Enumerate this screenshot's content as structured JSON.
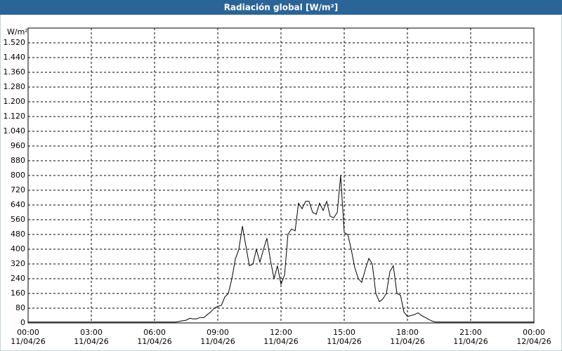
{
  "chart_data": {
    "type": "line",
    "title": "Radiación global [W/m²]",
    "y_label": "W/m²",
    "x": [
      0,
      1,
      2,
      3,
      4,
      5,
      6,
      7,
      7.17,
      7.33,
      7.5,
      7.67,
      7.83,
      8,
      8.17,
      8.33,
      8.5,
      8.67,
      8.83,
      9,
      9.17,
      9.33,
      9.5,
      9.67,
      9.83,
      10,
      10.17,
      10.33,
      10.5,
      10.67,
      10.83,
      11,
      11.17,
      11.33,
      11.5,
      11.67,
      11.83,
      12,
      12.17,
      12.33,
      12.5,
      12.67,
      12.83,
      13,
      13.17,
      13.33,
      13.5,
      13.67,
      13.83,
      14,
      14.17,
      14.33,
      14.5,
      14.67,
      14.83,
      15,
      15.17,
      15.33,
      15.5,
      15.67,
      15.83,
      16,
      16.17,
      16.33,
      16.5,
      16.67,
      16.83,
      17,
      17.17,
      17.33,
      17.5,
      17.67,
      17.83,
      18,
      18.17,
      18.33,
      18.5,
      18.67,
      18.83,
      19,
      19.17,
      19.33,
      20,
      21,
      22,
      23,
      24
    ],
    "series": [
      {
        "name": "Radiación global",
        "color": "#000000",
        "values": [
          5,
          5,
          5,
          5,
          5,
          5,
          5,
          5,
          8,
          12,
          15,
          25,
          22,
          22,
          30,
          28,
          45,
          60,
          80,
          90,
          95,
          140,
          160,
          240,
          345,
          400,
          525,
          420,
          310,
          320,
          400,
          330,
          400,
          460,
          340,
          240,
          310,
          210,
          260,
          480,
          510,
          500,
          650,
          620,
          660,
          660,
          600,
          590,
          650,
          610,
          660,
          580,
          570,
          600,
          800,
          490,
          480,
          400,
          300,
          240,
          220,
          290,
          350,
          320,
          160,
          115,
          130,
          160,
          280,
          310,
          160,
          150,
          60,
          35,
          40,
          45,
          55,
          40,
          30,
          20,
          10,
          5,
          5,
          5,
          5,
          5,
          5
        ]
      }
    ],
    "xlim": [
      0,
      24
    ],
    "xticks": [
      {
        "value": 0,
        "label": "00:00\n11/04/26"
      },
      {
        "value": 3,
        "label": "03:00\n11/04/26"
      },
      {
        "value": 6,
        "label": "06:00\n11/04/26"
      },
      {
        "value": 9,
        "label": "09:00\n11/04/26"
      },
      {
        "value": 12,
        "label": "12:00\n11/04/26"
      },
      {
        "value": 15,
        "label": "15:00\n11/04/26"
      },
      {
        "value": 18,
        "label": "18:00\n11/04/26"
      },
      {
        "value": 21,
        "label": "21:00\n11/04/26"
      },
      {
        "value": 24,
        "label": "00:00\n12/04/26"
      }
    ],
    "ylim": [
      0,
      1600
    ],
    "yticks": [
      0,
      80,
      160,
      240,
      320,
      400,
      480,
      560,
      640,
      720,
      800,
      880,
      960,
      {
        "value": 1040,
        "label": "1.040"
      },
      {
        "value": 1120,
        "label": "1.120"
      },
      {
        "value": 1200,
        "label": "1.200"
      },
      {
        "value": 1280,
        "label": "1.280"
      },
      {
        "value": 1360,
        "label": "1.360"
      },
      {
        "value": 1440,
        "label": "1.440"
      },
      {
        "value": 1520,
        "label": "1.520"
      }
    ],
    "grid": true
  }
}
